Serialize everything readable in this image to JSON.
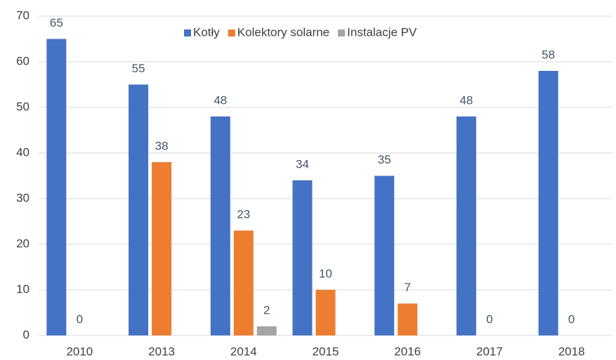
{
  "chart_data": {
    "type": "bar",
    "categories": [
      "2010",
      "2013",
      "2014",
      "2015",
      "2016",
      "2017",
      "2018"
    ],
    "series": [
      {
        "name": "Kotły",
        "color": "#4472c4",
        "values": [
          65,
          55,
          48,
          34,
          35,
          48,
          58
        ]
      },
      {
        "name": "Kolektory solarne",
        "color": "#ed7d31",
        "values": [
          0,
          38,
          23,
          10,
          7,
          0,
          0
        ]
      },
      {
        "name": "Instalacje PV",
        "color": "#a5a5a5",
        "values": [
          null,
          null,
          2,
          null,
          null,
          null,
          null
        ]
      }
    ],
    "ylim": [
      0,
      70
    ],
    "yticks": [
      0,
      10,
      20,
      30,
      40,
      50,
      60,
      70
    ],
    "grid": true,
    "legend": "top"
  }
}
